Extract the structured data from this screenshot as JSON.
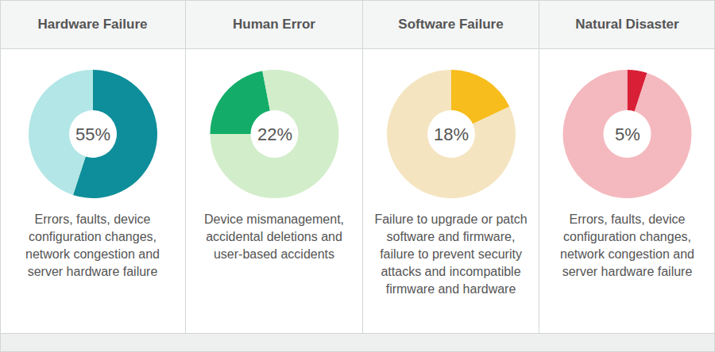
{
  "chart_data": [
    {
      "type": "pie",
      "title": "Hardware Failure",
      "categories": [
        null,
        null
      ],
      "values": [
        55,
        45
      ],
      "data_labels": true,
      "value_labels": [
        "55%",
        null
      ],
      "colors": [
        "#0e8e9a",
        "#b3e6e6"
      ],
      "annotations": [
        "Errors, faults, device configuration changes, network congestion and server hardware failure"
      ]
    },
    {
      "type": "pie",
      "title": "Human Error",
      "categories": [
        null,
        null
      ],
      "values": [
        22,
        78
      ],
      "data_labels": true,
      "value_labels": [
        "22%",
        null
      ],
      "colors": [
        "#13ad69",
        "#d2edca"
      ],
      "annotations": [
        "Device mismanagement, accidental deletions and user-based accidents"
      ]
    },
    {
      "type": "pie",
      "title": "Software Failure",
      "categories": [
        null,
        null
      ],
      "values": [
        18,
        82
      ],
      "data_labels": true,
      "value_labels": [
        "18%",
        null
      ],
      "colors": [
        "#f7bd1d",
        "#f4e4c0"
      ],
      "annotations": [
        "Failure to upgrade or patch software and firmware, failure to prevent security attacks and incompatible firmware and hardware"
      ]
    },
    {
      "type": "pie",
      "title": "Natural Disaster",
      "categories": [
        null,
        null
      ],
      "values": [
        5,
        95
      ],
      "data_labels": true,
      "value_labels": [
        "5%",
        null
      ],
      "colors": [
        "#d91f36",
        "#f4b9be"
      ],
      "annotations": [
        "Errors, faults, device configuration changes, network congestion and server hardware failure"
      ]
    }
  ]
}
